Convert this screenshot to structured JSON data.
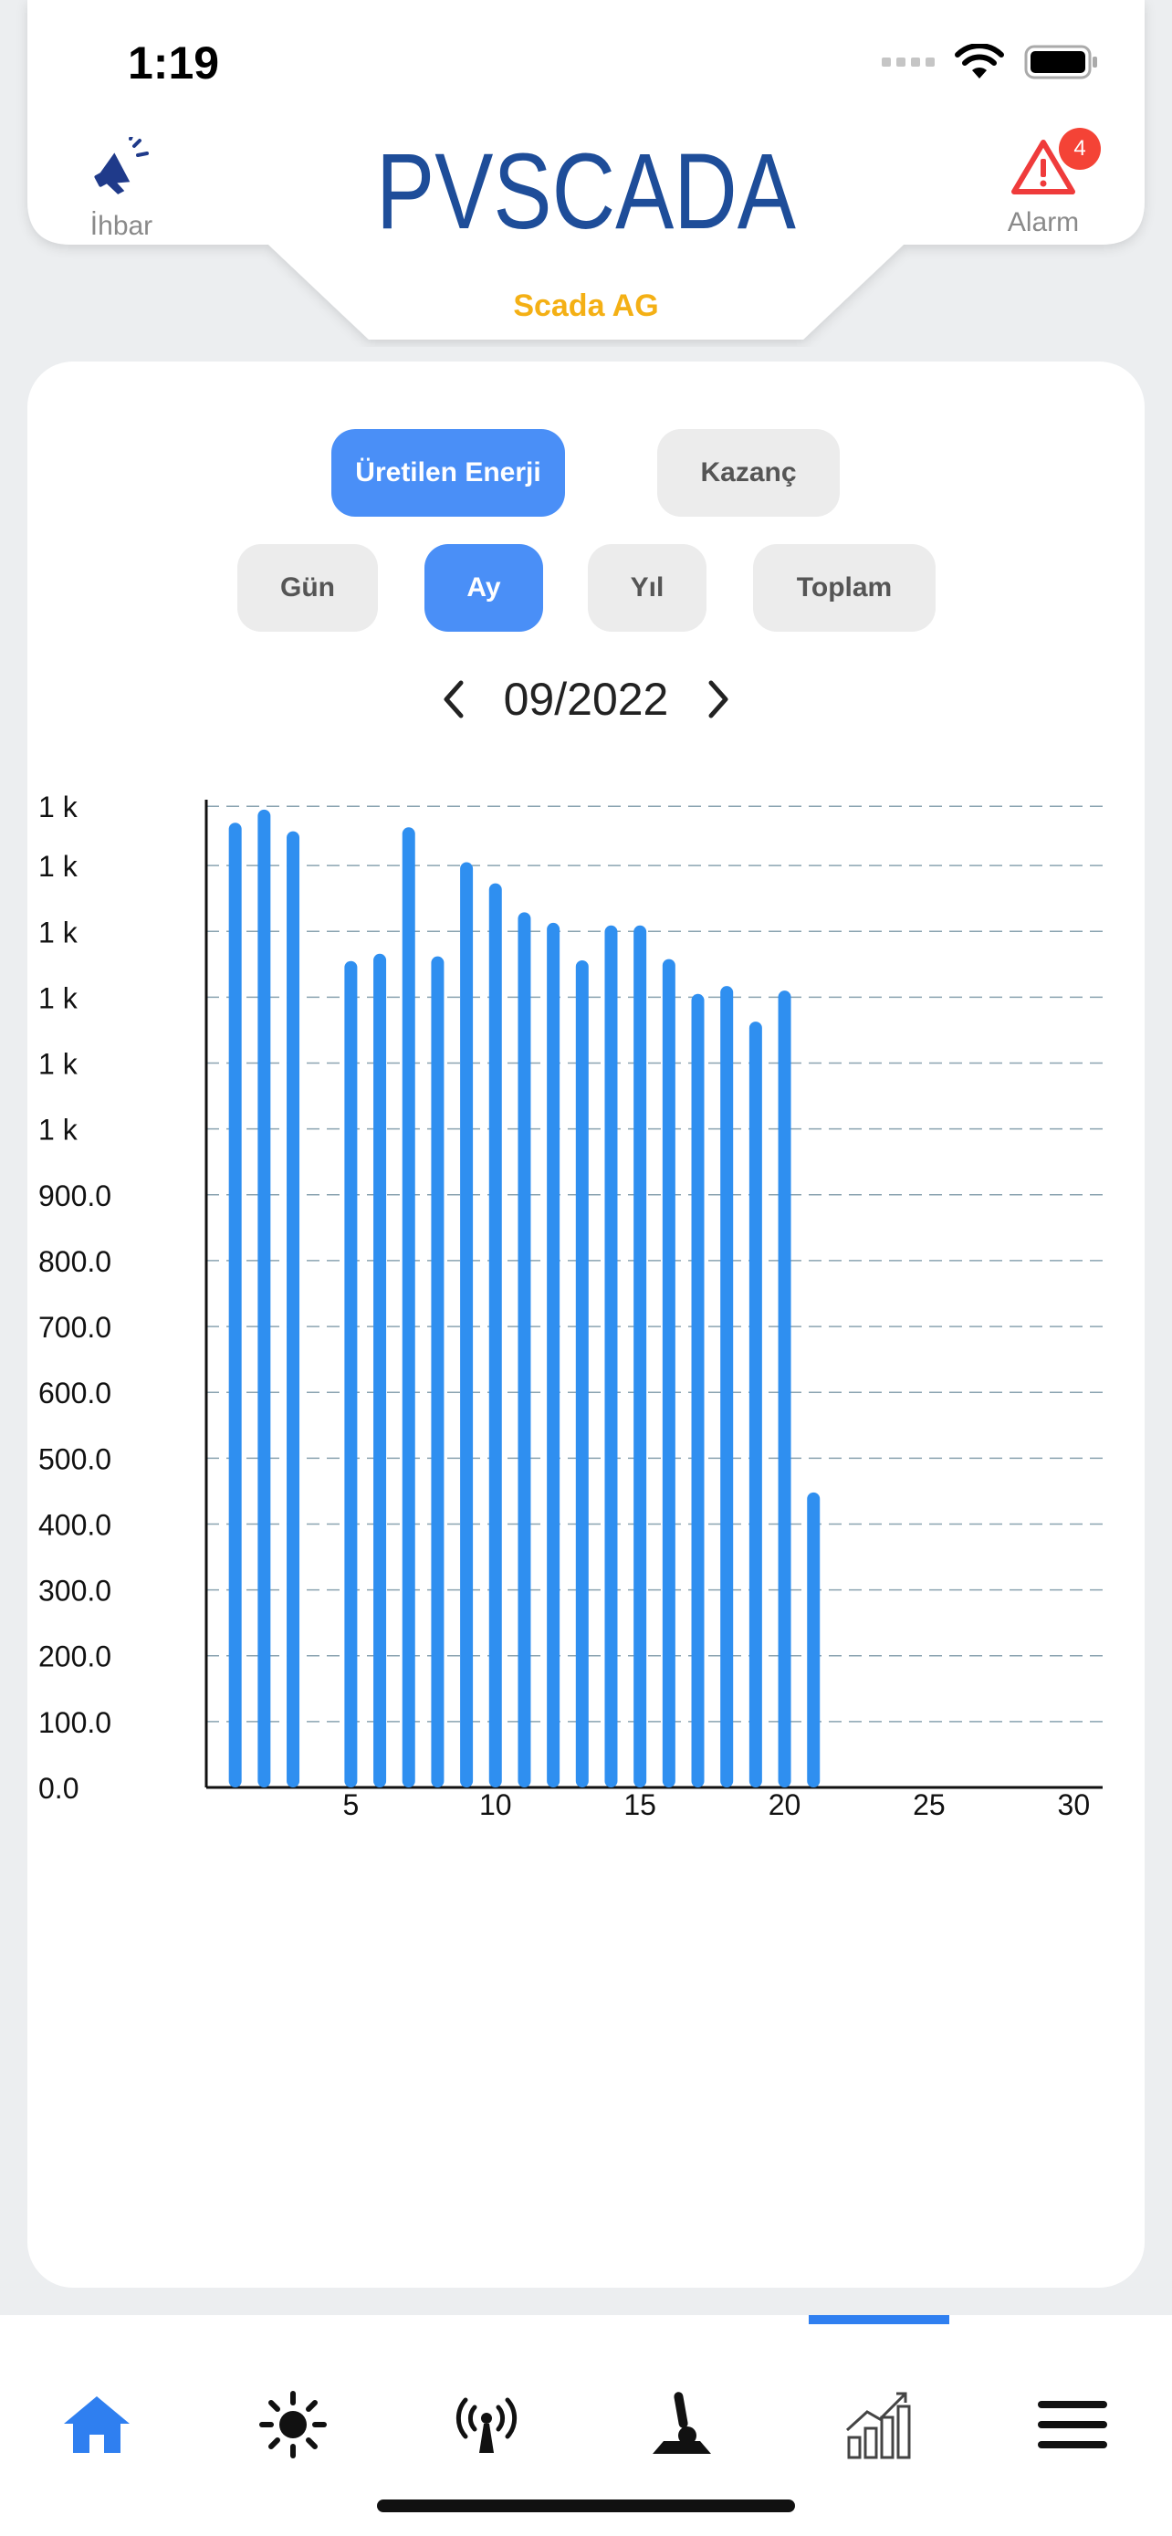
{
  "status_bar": {
    "time": "1:19"
  },
  "header": {
    "ihbar_label": "İhbar",
    "alarm_label": "Alarm",
    "alarm_count": "4",
    "logo_text": "PVSCADA",
    "plant_name": "Scada AG"
  },
  "tabs": {
    "primary": [
      "Üretilen Enerji",
      "Kazanç"
    ],
    "primary_active": "Üretilen Enerji",
    "period": [
      "Gün",
      "Ay",
      "Yıl",
      "Toplam"
    ],
    "period_active": "Ay"
  },
  "date_nav": {
    "current": "09/2022"
  },
  "chart_data": {
    "type": "bar",
    "x": [
      1,
      2,
      3,
      4,
      5,
      6,
      7,
      8,
      9,
      10,
      11,
      12,
      13,
      14,
      15,
      16,
      17,
      18,
      19,
      20,
      21
    ],
    "values": [
      1465,
      1485,
      1452,
      0,
      1255,
      1266,
      1458,
      1262,
      1405,
      1373,
      1329,
      1313,
      1256,
      1309,
      1309,
      1258,
      1205,
      1217,
      1163,
      1210,
      448
    ],
    "xlim": [
      0,
      31
    ],
    "ylim": [
      0,
      1500
    ],
    "x_ticks": [
      5,
      10,
      15,
      20,
      25,
      30
    ],
    "y_ticks": [
      {
        "value": 0,
        "label": "0.0"
      },
      {
        "value": 100,
        "label": "100.0"
      },
      {
        "value": 200,
        "label": "200.0"
      },
      {
        "value": 300,
        "label": "300.0"
      },
      {
        "value": 400,
        "label": "400.0"
      },
      {
        "value": 500,
        "label": "500.0"
      },
      {
        "value": 600,
        "label": "600.0"
      },
      {
        "value": 700,
        "label": "700.0"
      },
      {
        "value": 800,
        "label": "800.0"
      },
      {
        "value": 900,
        "label": "900.0"
      },
      {
        "value": 1000,
        "label": "1 k"
      },
      {
        "value": 1100,
        "label": "1 k"
      },
      {
        "value": 1200,
        "label": "1 k"
      },
      {
        "value": 1300,
        "label": "1 k"
      },
      {
        "value": 1400,
        "label": "1 k"
      },
      {
        "value": 1490,
        "label": "1 k"
      }
    ],
    "grid": true,
    "bar_color": "#2f8ff0"
  },
  "bottom_nav": {
    "items": [
      "home-icon",
      "sun-icon",
      "antenna-icon",
      "joystick-icon",
      "chart-icon",
      "menu-icon"
    ],
    "active": "chart-icon",
    "active_color": "#2f7ff0"
  }
}
